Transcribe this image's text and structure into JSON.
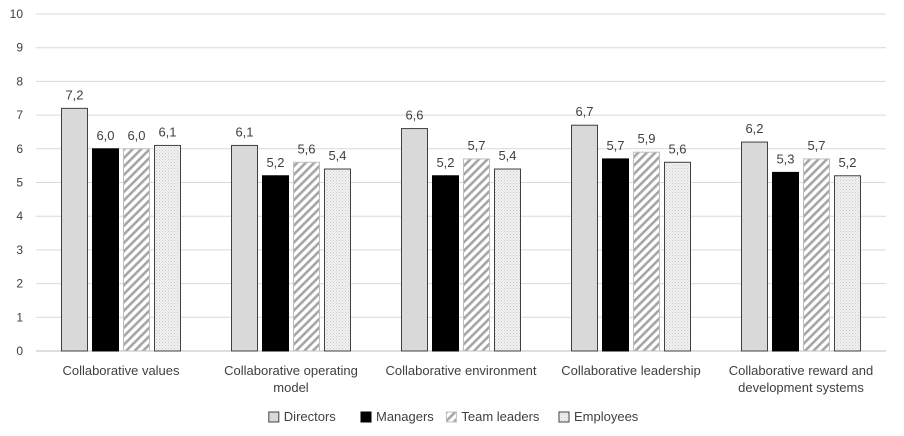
{
  "chart_data": {
    "type": "bar",
    "title": "",
    "xlabel": "",
    "ylabel": "",
    "ylim": [
      0,
      10
    ],
    "yticks": [
      "0",
      "1",
      "2",
      "3",
      "4",
      "5",
      "6",
      "7",
      "8",
      "9",
      "10"
    ],
    "grid": true,
    "legend_position": "bottom",
    "categories": [
      [
        "Collaborative values"
      ],
      [
        "Collaborative operating",
        "model"
      ],
      [
        "Collaborative environment"
      ],
      [
        "Collaborative leadership"
      ],
      [
        "Collaborative reward and",
        "development systems"
      ]
    ],
    "series": [
      {
        "name": "Directors",
        "fill": "light-gray",
        "color": "#d9d9d9",
        "values": [
          7.2,
          6.1,
          6.6,
          6.7,
          6.2
        ],
        "labels": [
          "7,2",
          "6,1",
          "6,6",
          "6,7",
          "6,2"
        ]
      },
      {
        "name": "Managers",
        "fill": "black",
        "color": "#000000",
        "values": [
          6.0,
          5.2,
          5.2,
          5.7,
          5.3
        ],
        "labels": [
          "6,0",
          "5,2",
          "5,2",
          "5,7",
          "5,3"
        ]
      },
      {
        "name": "Team leaders",
        "fill": "diagonal-hatch",
        "color": "#a6a6a6",
        "values": [
          6.0,
          5.6,
          5.7,
          5.9,
          5.7
        ],
        "labels": [
          "6,0",
          "5,6",
          "5,7",
          "5,9",
          "5,7"
        ]
      },
      {
        "name": "Employees",
        "fill": "light-dotted",
        "color": "#ededed",
        "values": [
          6.1,
          5.4,
          5.4,
          5.6,
          5.2
        ],
        "labels": [
          "6,1",
          "5,4",
          "5,4",
          "5,6",
          "5,2"
        ]
      }
    ]
  }
}
